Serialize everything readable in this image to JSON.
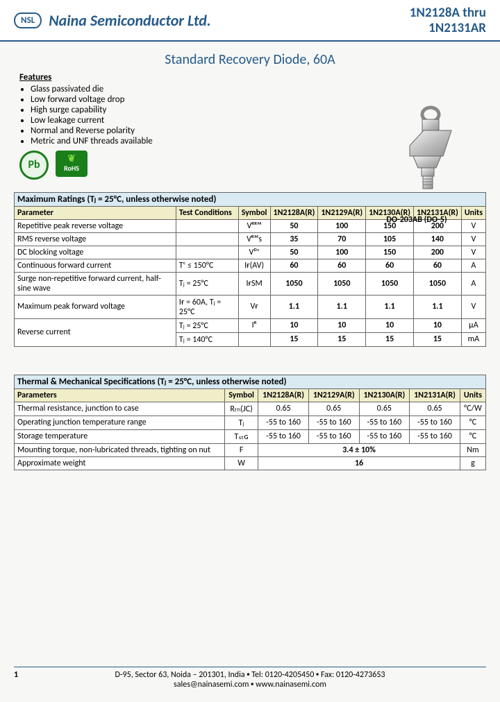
{
  "header": {
    "logo_text": "NSL",
    "company": "Naina Semiconductor Ltd.",
    "partno_line1": "1N2128A thru",
    "partno_line2": "1N2131AR"
  },
  "title": "Standard Recovery Diode, 60A",
  "features_heading": "Features",
  "features": [
    "Glass passivated die",
    "Low forward voltage drop",
    "High surge capability",
    "Low leakage current",
    "Normal and Reverse polarity",
    "Metric and UNF threads available"
  ],
  "badges": {
    "pb": "Pb",
    "rohs_top": "RoHS"
  },
  "package_label": "DO-203AB (DO-5)",
  "tables": {
    "max_ratings": {
      "title": "Maximum Ratings",
      "title_note": "(Tⱼ = 25°C, unless otherwise noted)",
      "columns": [
        "Parameter",
        "Test Conditions",
        "Symbol",
        "1N2128A(R)",
        "1N2129A(R)",
        "1N2130A(R)",
        "1N2131A(R)",
        "Units"
      ],
      "rows": [
        {
          "param": "Repetitive peak reverse voltage",
          "cond": "",
          "sym": "Vᴿᴿᴹ",
          "v": [
            "50",
            "100",
            "150",
            "200"
          ],
          "unit": "V"
        },
        {
          "param": "RMS reverse voltage",
          "cond": "",
          "sym": "Vᴿᴹs",
          "v": [
            "35",
            "70",
            "105",
            "140"
          ],
          "unit": "V",
          "nobottom": true
        },
        {
          "param": "DC blocking voltage",
          "cond": "",
          "sym": "Vᴰᶜ",
          "v": [
            "50",
            "100",
            "150",
            "200"
          ],
          "unit": "V",
          "notop": true
        },
        {
          "param": "Continuous forward current",
          "cond": "Tᶜ ≤ 150°C",
          "sym": "Iғ(AV)",
          "v": [
            "60",
            "60",
            "60",
            "60"
          ],
          "unit": "A",
          "nobottom": true
        },
        {
          "param": "Surge non-repetitive forward current, half-sine wave",
          "cond": "Tⱼ = 25°C",
          "sym": "IғSM",
          "v": [
            "1050",
            "1050",
            "1050",
            "1050"
          ],
          "unit": "A",
          "notop": true
        },
        {
          "param": "Maximum peak forward voltage",
          "cond": "Iғ = 60A, Tⱼ = 25°C",
          "sym": "Vғ",
          "v": [
            "1.1",
            "1.1",
            "1.1",
            "1.1"
          ],
          "unit": "V"
        },
        {
          "param": "Reverse current",
          "cond": "Tⱼ = 25°C",
          "sym": "Iᴿ",
          "v": [
            "10",
            "10",
            "10",
            "10"
          ],
          "unit": "µA",
          "span_param": 2,
          "nobottom": true
        },
        {
          "param": "",
          "cond": "Tⱼ = 140°C",
          "sym": "",
          "v": [
            "15",
            "15",
            "15",
            "15"
          ],
          "unit": "mA",
          "notop": true,
          "skip_param": true
        }
      ]
    },
    "thermal": {
      "title": "Thermal & Mechanical Specifications",
      "title_note": "(Tⱼ = 25°C, unless otherwise noted)",
      "columns": [
        "Parameters",
        "Symbol",
        "1N2128A(R)",
        "1N2129A(R)",
        "1N2130A(R)",
        "1N2131A(R)",
        "Units"
      ],
      "rows": [
        {
          "param": "Thermal resistance, junction to case",
          "sym": "Rₜₕ(JC)",
          "v": [
            "0.65",
            "0.65",
            "0.65",
            "0.65"
          ],
          "unit": "°C/W"
        },
        {
          "param": "Operating junction temperature range",
          "sym": "Tⱼ",
          "v": [
            "-55 to 160",
            "-55 to 160",
            "-55 to 160",
            "-55 to 160"
          ],
          "unit": "°C"
        },
        {
          "param": "Storage temperature",
          "sym": "Tₛₜɢ",
          "v": [
            "-55 to 160",
            "-55 to 160",
            "-55 to 160",
            "-55 to 160"
          ],
          "unit": "°C"
        },
        {
          "param": "Mounting torque, non-lubricated threads, tighting on nut",
          "sym": "F",
          "span": "3.4 ± 10%",
          "unit": "Nm"
        },
        {
          "param": "Approximate weight",
          "sym": "W",
          "span": "16",
          "unit": "g"
        }
      ]
    }
  },
  "footer": {
    "page": "1",
    "line1": "D-95, Sector 63, Noida – 201301, India   ▪   Tel: 0120-4205450   ▪   Fax: 0120-4273653",
    "line2": "sales@nainasemi.com   ▪   www.nainasemi.com"
  }
}
